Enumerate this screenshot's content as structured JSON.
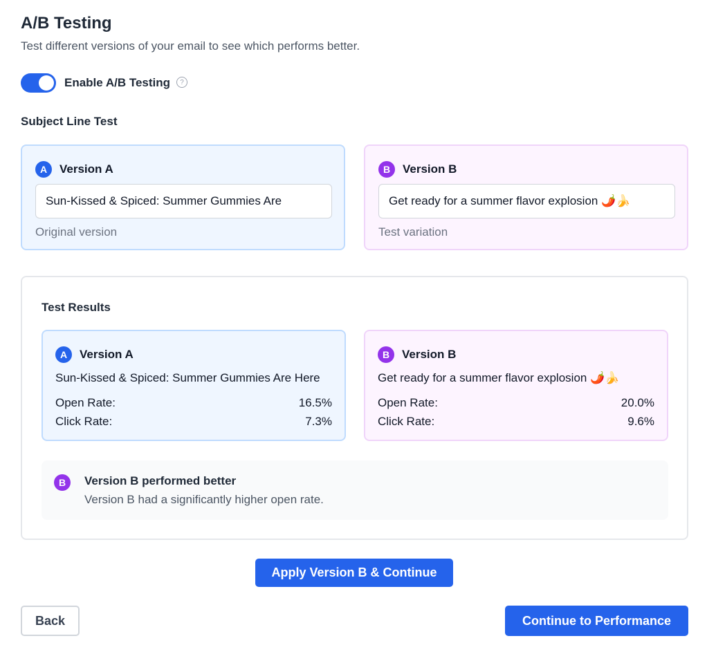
{
  "header": {
    "title": "A/B Testing",
    "subtitle": "Test different versions of your email to see which performs better."
  },
  "toggle": {
    "label": "Enable A/B Testing",
    "enabled": true,
    "help_icon": "?"
  },
  "subject_test": {
    "section_label": "Subject Line Test",
    "version_a": {
      "badge": "A",
      "label": "Version A",
      "subject": "Sun-Kissed & Spiced: Summer Gummies Are",
      "note": "Original version"
    },
    "version_b": {
      "badge": "B",
      "label": "Version B",
      "subject": "Get ready for a summer flavor explosion 🌶️🍌",
      "note": "Test variation"
    }
  },
  "results": {
    "title": "Test Results",
    "version_a": {
      "badge": "A",
      "label": "Version A",
      "subject": "Sun-Kissed & Spiced: Summer Gummies Are Here",
      "open_rate_label": "Open Rate:",
      "open_rate": "16.5%",
      "click_rate_label": "Click Rate:",
      "click_rate": "7.3%"
    },
    "version_b": {
      "badge": "B",
      "label": "Version B",
      "subject": "Get ready for a summer flavor explosion 🌶️🍌",
      "open_rate_label": "Open Rate:",
      "open_rate": "20.0%",
      "click_rate_label": "Click Rate:",
      "click_rate": "9.6%"
    },
    "winner": {
      "badge": "B",
      "title": "Version B performed better",
      "description": "Version B had a significantly higher open rate."
    }
  },
  "actions": {
    "apply": "Apply Version B & Continue",
    "back": "Back",
    "continue": "Continue to Performance"
  },
  "colors": {
    "primary": "#2563eb",
    "version_b": "#9333ea"
  }
}
